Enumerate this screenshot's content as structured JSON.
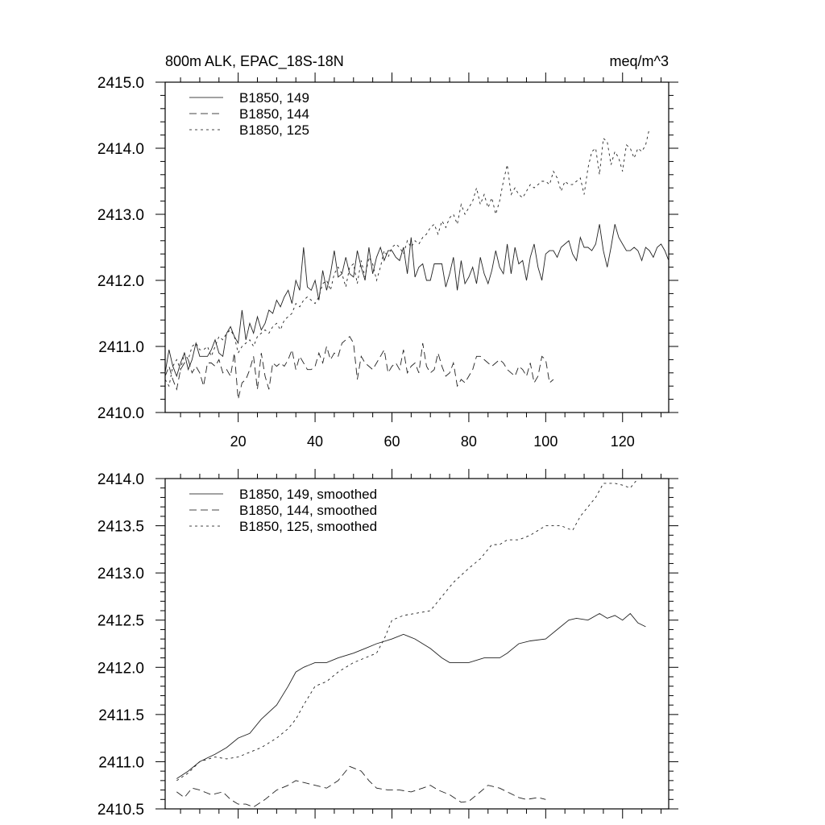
{
  "chart_data": [
    {
      "type": "line",
      "title_left": "800m ALK, EPAC_18S-18N",
      "title_right": "meq/m^3",
      "xlim": [
        1,
        132
      ],
      "ylim": [
        2410.0,
        2415.0
      ],
      "x_major_step": 20,
      "x_minor_step": 5,
      "y_major_step": 1.0,
      "y_minor_step": 0.2,
      "x_tick_labels": [
        "20",
        "40",
        "60",
        "80",
        "100",
        "120"
      ],
      "y_tick_labels": [
        "2410.0",
        "2411.0",
        "2412.0",
        "2413.0",
        "2414.0",
        "2415.0"
      ],
      "legend_placement": "top-left",
      "grid": false,
      "series": [
        {
          "name": "B1850, 149",
          "style": "solid",
          "x_start": 1,
          "values": [
            2410.6,
            2410.95,
            2410.7,
            2410.55,
            2410.75,
            2410.9,
            2410.65,
            2410.8,
            2411.05,
            2410.85,
            2410.85,
            2410.85,
            2410.95,
            2411.1,
            2410.9,
            2410.85,
            2411.2,
            2411.3,
            2411.15,
            2411.05,
            2411.55,
            2411.1,
            2411.35,
            2411.2,
            2411.45,
            2411.25,
            2411.35,
            2411.55,
            2411.5,
            2411.7,
            2411.6,
            2411.75,
            2411.85,
            2411.65,
            2412.0,
            2411.85,
            2412.5,
            2411.9,
            2411.85,
            2412.0,
            2411.7,
            2412.15,
            2411.85,
            2412.1,
            2412.45,
            2412.05,
            2412.1,
            2412.35,
            2412.1,
            2412.05,
            2412.45,
            2412.2,
            2412.0,
            2412.5,
            2412.1,
            2412.35,
            2412.5,
            2412.3,
            2412.45,
            2412.45,
            2412.35,
            2412.3,
            2412.5,
            2412.1,
            2412.65,
            2412.05,
            2412.2,
            2412.25,
            2412.0,
            2412.0,
            2412.25,
            2412.25,
            2412.25,
            2411.9,
            2412.1,
            2412.35,
            2411.85,
            2412.3,
            2411.95,
            2412.05,
            2412.2,
            2411.95,
            2412.35,
            2412.1,
            2411.95,
            2412.15,
            2412.45,
            2412.2,
            2412.1,
            2412.55,
            2412.1,
            2412.5,
            2412.25,
            2412.3,
            2412.0,
            2412.35,
            2412.55,
            2412.2,
            2412.0,
            2412.4,
            2412.45,
            2412.45,
            2412.35,
            2412.5,
            2412.55,
            2412.6,
            2412.4,
            2412.3,
            2412.65,
            2412.5,
            2412.5,
            2412.45,
            2412.55,
            2412.85,
            2412.45,
            2412.2,
            2412.5,
            2412.85,
            2412.65,
            2412.55,
            2412.45,
            2412.45,
            2412.5,
            2412.45,
            2412.3,
            2412.5,
            2412.45,
            2412.35,
            2412.5,
            2412.55,
            2412.45,
            2412.3
          ]
        },
        {
          "name": "B1850, 144",
          "style": "dash",
          "x_start": 1,
          "values": [
            2410.55,
            2410.7,
            2410.5,
            2410.35,
            2410.65,
            2410.75,
            2410.8,
            2410.6,
            2410.7,
            2410.6,
            2410.4,
            2410.75,
            2410.75,
            2410.7,
            2410.8,
            2410.6,
            2410.65,
            2410.55,
            2410.9,
            2410.2,
            2410.45,
            2410.5,
            2410.65,
            2410.85,
            2410.35,
            2410.9,
            2410.55,
            2410.35,
            2410.75,
            2410.7,
            2410.75,
            2410.7,
            2410.8,
            2410.95,
            2410.65,
            2410.85,
            2410.75,
            2410.65,
            2410.65,
            2410.7,
            2410.9,
            2410.75,
            2411.0,
            2410.8,
            2410.9,
            2410.85,
            2411.05,
            2411.1,
            2411.15,
            2411.05,
            2410.5,
            2410.85,
            2410.75,
            2410.7,
            2410.65,
            2410.75,
            2410.85,
            2410.95,
            2410.6,
            2410.7,
            2410.75,
            2410.65,
            2410.95,
            2410.6,
            2410.7,
            2410.75,
            2410.6,
            2411.05,
            2410.7,
            2410.6,
            2410.65,
            2410.9,
            2410.7,
            2410.55,
            2410.6,
            2410.75,
            2410.4,
            2410.5,
            2410.45,
            2410.55,
            2410.65,
            2410.85,
            2410.85,
            2410.8,
            2410.75,
            2410.7,
            2410.75,
            2410.8,
            2410.75,
            2410.65,
            2410.6,
            2410.55,
            2410.7,
            2410.65,
            2410.55,
            2410.75,
            2410.45,
            2410.55,
            2410.85,
            2410.8,
            2410.45,
            2410.5
          ]
        },
        {
          "name": "B1850, 125",
          "style": "dot",
          "x_start": 1,
          "values": [
            2410.5,
            2410.4,
            2410.7,
            2410.8,
            2410.65,
            2410.9,
            2410.8,
            2411.0,
            2411.05,
            2410.95,
            2410.95,
            2411.0,
            2410.85,
            2411.0,
            2411.15,
            2411.1,
            2411.2,
            2411.25,
            2411.15,
            2410.9,
            2411.0,
            2411.05,
            2411.1,
            2411.0,
            2411.15,
            2411.2,
            2411.25,
            2411.2,
            2411.3,
            2411.35,
            2411.25,
            2411.4,
            2411.45,
            2411.5,
            2411.65,
            2411.6,
            2411.7,
            2411.75,
            2411.7,
            2411.65,
            2411.75,
            2411.95,
            2412.0,
            2411.85,
            2412.1,
            2412.2,
            2412.1,
            2411.9,
            2412.2,
            2412.25,
            2411.95,
            2412.3,
            2412.05,
            2412.35,
            2412.25,
            2412.0,
            2412.2,
            2412.45,
            2412.35,
            2412.5,
            2412.55,
            2412.5,
            2412.4,
            2412.6,
            2412.5,
            2412.6,
            2412.55,
            2412.65,
            2412.7,
            2412.8,
            2412.85,
            2412.7,
            2412.9,
            2412.8,
            2412.95,
            2413.0,
            2412.85,
            2413.15,
            2413.0,
            2413.1,
            2413.2,
            2413.4,
            2413.15,
            2413.3,
            2413.1,
            2413.25,
            2413.0,
            2413.2,
            2413.5,
            2413.75,
            2413.3,
            2413.4,
            2413.3,
            2413.25,
            2413.35,
            2413.45,
            2413.4,
            2413.45,
            2413.5,
            2413.5,
            2413.45,
            2413.65,
            2413.55,
            2413.35,
            2413.5,
            2413.45,
            2413.45,
            2413.5,
            2413.55,
            2413.3,
            2413.7,
            2413.95,
            2414.0,
            2413.6,
            2414.15,
            2414.1,
            2413.75,
            2413.95,
            2413.85,
            2413.65,
            2414.05,
            2414.0,
            2413.85,
            2414.0,
            2413.95,
            2414.05,
            2414.3
          ]
        }
      ]
    },
    {
      "type": "line",
      "xlim": [
        1,
        132
      ],
      "ylim": [
        2410.5,
        2414.0
      ],
      "x_major_step": 20,
      "x_minor_step": 5,
      "y_major_step": 0.5,
      "y_minor_step": 0.1,
      "y_tick_labels": [
        "2410.5",
        "2411.0",
        "2411.5",
        "2412.0",
        "2412.5",
        "2413.0",
        "2413.5",
        "2414.0"
      ],
      "legend_placement": "top-left",
      "grid": false,
      "series": [
        {
          "name": "B1850, 149, smoothed",
          "style": "solid",
          "x": [
            4,
            7,
            10,
            14,
            17,
            20,
            23,
            26,
            30,
            33,
            35,
            37,
            40,
            43,
            46,
            50,
            53,
            56,
            60,
            63,
            66,
            70,
            73,
            75,
            78,
            80,
            84,
            88,
            90,
            93,
            96,
            100,
            103,
            106,
            108,
            111,
            114,
            116,
            118,
            120,
            122,
            124,
            126
          ],
          "y": [
            2410.82,
            2410.9,
            2411.0,
            2411.08,
            2411.15,
            2411.25,
            2411.3,
            2411.45,
            2411.6,
            2411.8,
            2411.95,
            2412.0,
            2412.05,
            2412.05,
            2412.1,
            2412.15,
            2412.2,
            2412.25,
            2412.3,
            2412.35,
            2412.3,
            2412.2,
            2412.1,
            2412.05,
            2412.05,
            2412.05,
            2412.1,
            2412.1,
            2412.15,
            2412.25,
            2412.28,
            2412.3,
            2412.4,
            2412.5,
            2412.52,
            2412.5,
            2412.57,
            2412.52,
            2412.55,
            2412.5,
            2412.57,
            2412.47,
            2412.43
          ]
        },
        {
          "name": "B1850, 144, smoothed",
          "style": "dash",
          "x": [
            4,
            6,
            8,
            10,
            13,
            16,
            18,
            20,
            22,
            24,
            27,
            30,
            33,
            35,
            37,
            40,
            43,
            46,
            49,
            52,
            54,
            56,
            59,
            62,
            65,
            68,
            70,
            72,
            75,
            78,
            80,
            83,
            85,
            88,
            90,
            93,
            95,
            98,
            100
          ],
          "y": [
            2410.68,
            2410.62,
            2410.72,
            2410.7,
            2410.65,
            2410.68,
            2410.6,
            2410.55,
            2410.55,
            2410.52,
            2410.6,
            2410.7,
            2410.75,
            2410.8,
            2410.78,
            2410.75,
            2410.72,
            2410.8,
            2410.95,
            2410.9,
            2410.8,
            2410.72,
            2410.7,
            2410.7,
            2410.68,
            2410.72,
            2410.75,
            2410.7,
            2410.65,
            2410.57,
            2410.58,
            2410.68,
            2410.75,
            2410.72,
            2410.68,
            2410.62,
            2410.6,
            2410.62,
            2410.6
          ]
        },
        {
          "name": "B1850, 125, smoothed",
          "style": "dot",
          "x": [
            4,
            7,
            10,
            14,
            17,
            20,
            23,
            26,
            30,
            33,
            35,
            37,
            40,
            43,
            46,
            50,
            53,
            56,
            58,
            60,
            63,
            66,
            70,
            73,
            76,
            80,
            83,
            86,
            88,
            90,
            93,
            96,
            100,
            104,
            107,
            109,
            111,
            113,
            115,
            118,
            120,
            122,
            124
          ],
          "y": [
            2410.8,
            2410.88,
            2411.0,
            2411.05,
            2411.03,
            2411.05,
            2411.1,
            2411.15,
            2411.25,
            2411.35,
            2411.45,
            2411.6,
            2411.8,
            2411.85,
            2411.95,
            2412.05,
            2412.1,
            2412.15,
            2412.3,
            2412.5,
            2412.55,
            2412.57,
            2412.6,
            2412.75,
            2412.9,
            2413.05,
            2413.15,
            2413.3,
            2413.3,
            2413.35,
            2413.35,
            2413.4,
            2413.5,
            2413.5,
            2413.45,
            2413.6,
            2413.7,
            2413.8,
            2413.95,
            2413.95,
            2413.93,
            2413.9,
            2414.0
          ]
        }
      ]
    }
  ]
}
